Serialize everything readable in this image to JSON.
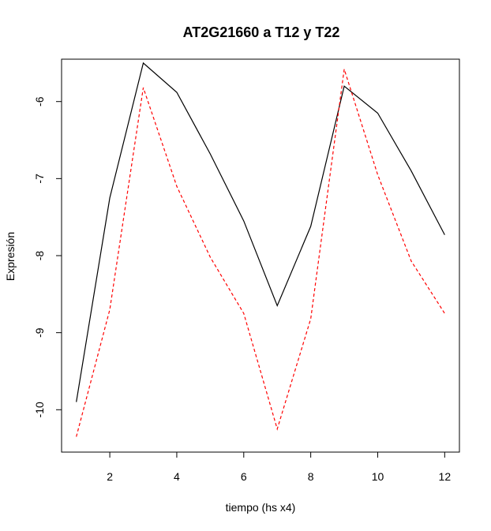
{
  "chart_data": {
    "type": "line",
    "title": "AT2G21660 a T12 y T22",
    "xlabel": "tiempo (hs x4)",
    "ylabel": "Expresión",
    "x": [
      1,
      2,
      3,
      4,
      5,
      6,
      7,
      8,
      9,
      10,
      11,
      12
    ],
    "xlim": [
      0.56,
      12.44
    ],
    "ylim": [
      -10.55,
      -5.45
    ],
    "xticks": [
      2,
      4,
      6,
      8,
      10,
      12
    ],
    "yticks": [
      -10,
      -9,
      -8,
      -7,
      -6
    ],
    "grid": false,
    "series": [
      {
        "values": [
          -9.9,
          -7.25,
          -5.5,
          -5.88,
          -6.68,
          -7.55,
          -8.65,
          -7.62,
          -5.8,
          -6.15,
          -6.9,
          -7.73
        ],
        "color": "#000000",
        "line_style": "solid"
      },
      {
        "values": [
          -10.35,
          -8.7,
          -5.82,
          -7.1,
          -8.02,
          -8.75,
          -10.25,
          -8.82,
          -5.58,
          -6.95,
          -8.07,
          -8.75
        ],
        "color": "#ff0000",
        "line_style": "dashed"
      }
    ]
  }
}
